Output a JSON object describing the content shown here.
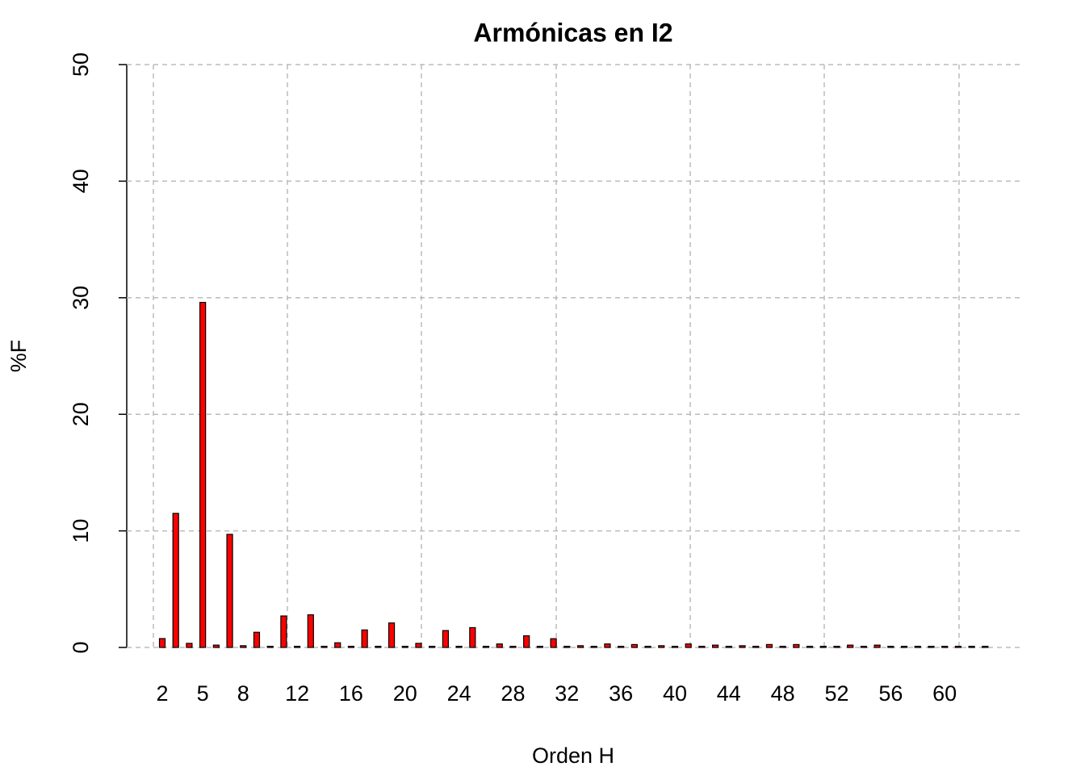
{
  "chart_data": {
    "type": "bar",
    "title": "Armónicas en I2",
    "x_label": "Orden H",
    "y_label": "%F",
    "categories": [
      "2",
      null,
      null,
      "5",
      null,
      null,
      "8",
      null,
      null,
      null,
      "12",
      null,
      null,
      null,
      "16",
      null,
      null,
      null,
      "20",
      null,
      null,
      null,
      "24",
      null,
      null,
      null,
      "28",
      null,
      null,
      null,
      "32",
      null,
      null,
      null,
      "36",
      null,
      null,
      null,
      "40",
      null,
      null,
      null,
      "44",
      null,
      null,
      null,
      "48",
      null,
      null,
      null,
      "52",
      null,
      null,
      null,
      "56",
      null,
      null,
      null,
      "60",
      null,
      null,
      null
    ],
    "values": [
      0.76,
      11.5,
      0.35,
      29.6,
      0.2,
      9.7,
      0.15,
      1.3,
      0.1,
      2.7,
      0.1,
      2.8,
      0.1,
      0.4,
      0.1,
      1.5,
      0.1,
      2.1,
      0.1,
      0.35,
      0.1,
      1.45,
      0.1,
      1.7,
      0.1,
      0.3,
      0.1,
      1.0,
      0.1,
      0.75,
      0.1,
      0.15,
      0.1,
      0.3,
      0.1,
      0.25,
      0.1,
      0.15,
      0.1,
      0.3,
      0.1,
      0.2,
      0.1,
      0.15,
      0.1,
      0.25,
      0.1,
      0.25,
      0.1,
      0.1,
      0.1,
      0.2,
      0.1,
      0.2,
      0.1,
      0.1,
      0.1,
      0.1,
      0.1,
      0.1,
      0.1,
      0.1
    ],
    "color": "#ff0000",
    "ylim": [
      0,
      50
    ],
    "yticks": [
      0,
      10,
      20,
      30,
      40,
      50
    ],
    "grid": true
  }
}
